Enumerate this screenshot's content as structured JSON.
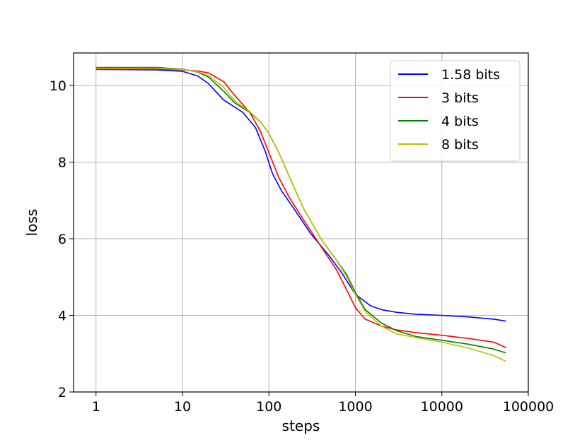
{
  "chart_data": {
    "type": "line",
    "title": "",
    "xlabel": "steps",
    "ylabel": "loss",
    "xscale": "log",
    "xlim": [
      0.55,
      100000
    ],
    "ylim": [
      2,
      10.85
    ],
    "xticks": [
      {
        "value": 1,
        "label": "1"
      },
      {
        "value": 10,
        "label": "10"
      },
      {
        "value": 100,
        "label": "100"
      },
      {
        "value": 1000,
        "label": "1000"
      },
      {
        "value": 10000,
        "label": "10000"
      },
      {
        "value": 100000,
        "label": "100000"
      }
    ],
    "yticks": [
      {
        "value": 2,
        "label": "2"
      },
      {
        "value": 4,
        "label": "4"
      },
      {
        "value": 6,
        "label": "6"
      },
      {
        "value": 8,
        "label": "8"
      },
      {
        "value": 10,
        "label": "10"
      }
    ],
    "grid": true,
    "legend": "top-right",
    "series": [
      {
        "name": "1.58 bits",
        "color": "#0000ff",
        "points": [
          [
            1,
            10.42
          ],
          [
            5,
            10.41
          ],
          [
            10,
            10.37
          ],
          [
            15,
            10.25
          ],
          [
            20,
            10.05
          ],
          [
            30,
            9.62
          ],
          [
            50,
            9.3
          ],
          [
            70,
            8.9
          ],
          [
            90,
            8.3
          ],
          [
            110,
            7.7
          ],
          [
            140,
            7.25
          ],
          [
            200,
            6.75
          ],
          [
            300,
            6.15
          ],
          [
            500,
            5.55
          ],
          [
            700,
            5.1
          ],
          [
            1000,
            4.55
          ],
          [
            1500,
            4.25
          ],
          [
            2000,
            4.15
          ],
          [
            3000,
            4.08
          ],
          [
            5000,
            4.03
          ],
          [
            10000,
            4.0
          ],
          [
            20000,
            3.96
          ],
          [
            40000,
            3.9
          ],
          [
            55000,
            3.85
          ]
        ]
      },
      {
        "name": "3 bits",
        "color": "#ff0000",
        "points": [
          [
            1,
            10.43
          ],
          [
            5,
            10.43
          ],
          [
            10,
            10.41
          ],
          [
            15,
            10.38
          ],
          [
            20,
            10.33
          ],
          [
            30,
            10.1
          ],
          [
            40,
            9.75
          ],
          [
            60,
            9.3
          ],
          [
            80,
            8.8
          ],
          [
            100,
            8.25
          ],
          [
            130,
            7.6
          ],
          [
            170,
            7.1
          ],
          [
            250,
            6.5
          ],
          [
            400,
            5.8
          ],
          [
            600,
            5.2
          ],
          [
            800,
            4.65
          ],
          [
            1000,
            4.2
          ],
          [
            1300,
            3.9
          ],
          [
            2000,
            3.72
          ],
          [
            3000,
            3.62
          ],
          [
            5000,
            3.55
          ],
          [
            10000,
            3.48
          ],
          [
            20000,
            3.4
          ],
          [
            40000,
            3.3
          ],
          [
            55000,
            3.16
          ]
        ]
      },
      {
        "name": "4 bits",
        "color": "#008000",
        "points": [
          [
            1,
            10.47
          ],
          [
            5,
            10.47
          ],
          [
            10,
            10.43
          ],
          [
            15,
            10.35
          ],
          [
            20,
            10.22
          ],
          [
            30,
            9.85
          ],
          [
            40,
            9.55
          ],
          [
            60,
            9.3
          ],
          [
            80,
            9.05
          ],
          [
            100,
            8.75
          ],
          [
            130,
            8.25
          ],
          [
            170,
            7.65
          ],
          [
            250,
            6.8
          ],
          [
            400,
            6.0
          ],
          [
            600,
            5.45
          ],
          [
            800,
            5.05
          ],
          [
            1000,
            4.6
          ],
          [
            1300,
            4.15
          ],
          [
            2000,
            3.8
          ],
          [
            3000,
            3.6
          ],
          [
            5000,
            3.45
          ],
          [
            10000,
            3.35
          ],
          [
            20000,
            3.25
          ],
          [
            40000,
            3.12
          ],
          [
            55000,
            3.02
          ]
        ]
      },
      {
        "name": "8 bits",
        "color": "#bfbf00",
        "points": [
          [
            1,
            10.45
          ],
          [
            5,
            10.45
          ],
          [
            10,
            10.42
          ],
          [
            15,
            10.36
          ],
          [
            20,
            10.26
          ],
          [
            30,
            9.95
          ],
          [
            40,
            9.6
          ],
          [
            60,
            9.32
          ],
          [
            80,
            9.05
          ],
          [
            100,
            8.75
          ],
          [
            130,
            8.25
          ],
          [
            170,
            7.65
          ],
          [
            250,
            6.8
          ],
          [
            400,
            6.0
          ],
          [
            600,
            5.45
          ],
          [
            800,
            5.0
          ],
          [
            1000,
            4.55
          ],
          [
            1300,
            4.1
          ],
          [
            2000,
            3.72
          ],
          [
            3000,
            3.52
          ],
          [
            5000,
            3.42
          ],
          [
            10000,
            3.3
          ],
          [
            20000,
            3.15
          ],
          [
            40000,
            2.95
          ],
          [
            55000,
            2.8
          ]
        ]
      }
    ]
  }
}
